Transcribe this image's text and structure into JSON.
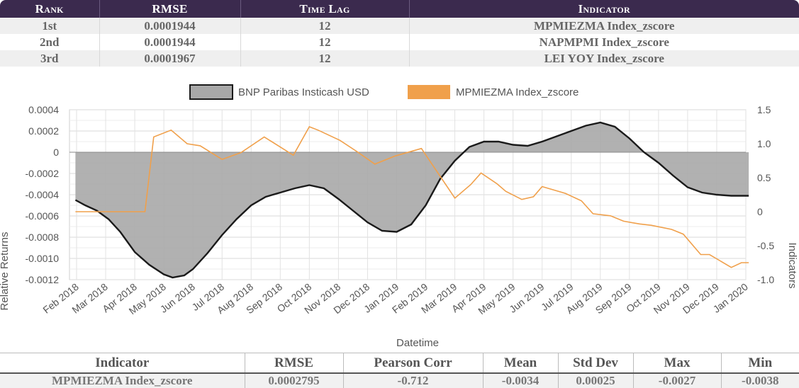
{
  "ranking": {
    "headers": [
      "Rank",
      "RMSE",
      "Time Lag",
      "Indicator"
    ],
    "rows": [
      {
        "rank": "1st",
        "rmse": "0.0001944",
        "lag": "12",
        "indicator": "MPMIEZMA Index_zscore"
      },
      {
        "rank": "2nd",
        "rmse": "0.0001944",
        "lag": "12",
        "indicator": "NAPMPMI Index_zscore"
      },
      {
        "rank": "3rd",
        "rmse": "0.0001967",
        "lag": "12",
        "indicator": "LEI YOY Index_zscore"
      }
    ]
  },
  "colors": {
    "header_bg": "#3b2a4e",
    "series1_fill": "#a8a8a8",
    "series1_line": "#1a1a1a",
    "series2_line": "#f0a04b"
  },
  "chart_data": {
    "type": "line",
    "xlabel": "Datetime",
    "ylabel": "Relative Returns",
    "y2label": "Indicators",
    "categories": [
      "Feb 2018",
      "Mar 2018",
      "Apr 2018",
      "May 2018",
      "Jun 2018",
      "Jul 2018",
      "Aug 2018",
      "Sep 2018",
      "Oct 2018",
      "Nov 2018",
      "Dec 2018",
      "Jan 2019",
      "Feb 2019",
      "Mar 2019",
      "Apr 2019",
      "May 2019",
      "Jun 2019",
      "Jul 2019",
      "Aug 2019",
      "Sep 2019",
      "Oct 2019",
      "Nov 2019",
      "Dec 2019",
      "Jan 2020"
    ],
    "ylim": [
      -0.0012,
      0.0004
    ],
    "y2lim": [
      -1.0,
      1.5
    ],
    "yticks": [
      "0.0004",
      "0.0002",
      "0",
      "-0.0002",
      "-0.0004",
      "-0.0006",
      "-0.0008",
      "-0.0010",
      "-0.0012"
    ],
    "y2ticks": [
      "1.5",
      "1.0",
      "0.5",
      "0",
      "-0.5",
      "-1.0"
    ],
    "grid": true,
    "legend_position": "top",
    "series": [
      {
        "name": "BNP Paribas Insticash USD",
        "axis": "left",
        "style": "area",
        "x": [
          -0.04,
          0.3,
          0.7,
          1.1,
          1.5,
          2.0,
          2.5,
          3.0,
          3.3,
          3.7,
          4.0,
          4.5,
          5.0,
          5.5,
          6.0,
          6.5,
          7.0,
          7.5,
          8.0,
          8.5,
          9.0,
          9.5,
          10.0,
          10.5,
          11.0,
          11.5,
          12.0,
          12.5,
          13.0,
          13.5,
          14.0,
          14.5,
          15.0,
          15.5,
          16.0,
          16.5,
          17.0,
          17.5,
          18.0,
          18.5,
          19.0,
          19.5,
          20.0,
          20.5,
          21.0,
          21.5,
          22.0,
          22.5,
          23.0,
          23.1
        ],
        "y": [
          -0.00045,
          -0.0005,
          -0.00055,
          -0.00063,
          -0.00075,
          -0.00094,
          -0.00106,
          -0.00115,
          -0.00118,
          -0.00116,
          -0.0011,
          -0.00095,
          -0.00078,
          -0.00063,
          -0.0005,
          -0.00042,
          -0.00038,
          -0.00034,
          -0.00031,
          -0.00034,
          -0.00044,
          -0.00055,
          -0.00066,
          -0.00074,
          -0.00075,
          -0.00068,
          -0.0005,
          -0.00025,
          -8e-05,
          5e-05,
          0.0001,
          0.0001,
          7e-05,
          6e-05,
          0.0001,
          0.00015,
          0.0002,
          0.00025,
          0.00028,
          0.00024,
          0.00013,
          0.0,
          -0.0001,
          -0.00022,
          -0.00033,
          -0.00038,
          -0.0004,
          -0.00041,
          -0.00041,
          -0.00041
        ]
      },
      {
        "name": "MPMIEZMA Index_zscore",
        "axis": "right",
        "style": "line",
        "x": [
          -0.04,
          1.5,
          1.7,
          1.85,
          2.35,
          2.65,
          3.25,
          3.8,
          4.25,
          5.0,
          5.65,
          6.45,
          7.45,
          8.0,
          8.3,
          9.05,
          9.65,
          10.25,
          10.95,
          11.85,
          13.0,
          13.55,
          13.9,
          14.45,
          14.75,
          15.3,
          15.7,
          16.0,
          16.8,
          17.35,
          17.75,
          18.35,
          18.8,
          19.35,
          19.75,
          20.45,
          20.85,
          21.45,
          21.75,
          22.5,
          22.85,
          23.1
        ],
        "y": [
          0.0,
          0.0,
          0.0,
          0.0,
          0.0,
          1.1,
          1.2,
          1.0,
          0.97,
          0.77,
          0.87,
          1.1,
          0.83,
          1.25,
          1.2,
          1.05,
          0.88,
          0.7,
          0.82,
          0.93,
          0.2,
          0.4,
          0.57,
          0.41,
          0.3,
          0.18,
          0.22,
          0.37,
          0.27,
          0.16,
          -0.03,
          -0.06,
          -0.14,
          -0.18,
          -0.2,
          -0.26,
          -0.33,
          -0.63,
          -0.63,
          -0.82,
          -0.75,
          -0.75
        ]
      }
    ]
  },
  "stats": {
    "headers": [
      "Indicator",
      "RMSE",
      "Pearson Corr",
      "Mean",
      "Std Dev",
      "Max",
      "Min"
    ],
    "row": [
      "MPMIEZMA Index_zscore",
      "0.0002795",
      "-0.712",
      "-0.0034",
      "0.00025",
      "-0.0027",
      "-0.0038"
    ]
  }
}
